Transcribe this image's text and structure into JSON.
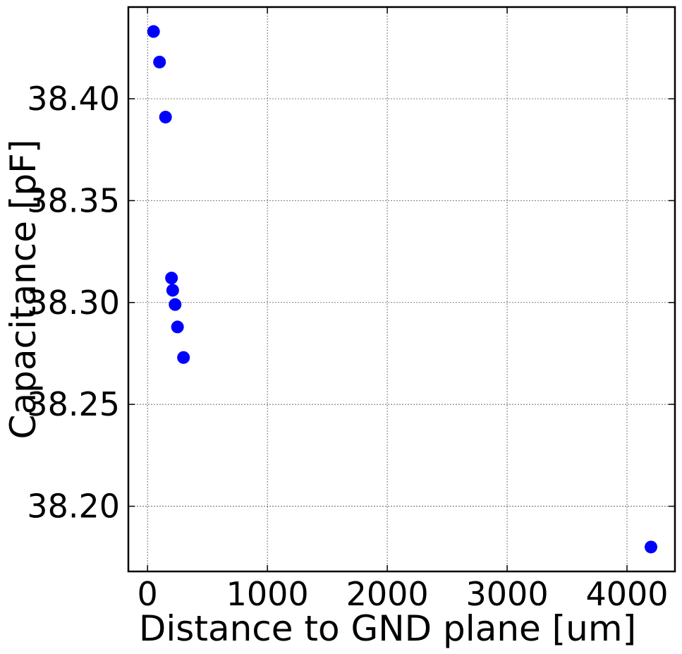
{
  "chart_data": {
    "type": "scatter",
    "xlabel": "Distance to GND plane [um]",
    "ylabel": "Capacitance [pF]",
    "xlim": [
      -160,
      4400
    ],
    "ylim": [
      38.168,
      38.445
    ],
    "xticks": [
      0,
      1000,
      2000,
      3000,
      4000
    ],
    "xtick_labels": [
      "0",
      "1000",
      "2000",
      "3000",
      "4000"
    ],
    "yticks": [
      38.2,
      38.25,
      38.3,
      38.35,
      38.4
    ],
    "ytick_labels": [
      "38.20",
      "38.25",
      "38.30",
      "38.35",
      "38.40"
    ],
    "grid": true,
    "marker_color": "#0000ff",
    "series": [
      {
        "points": [
          {
            "x": 50,
            "y": 38.433
          },
          {
            "x": 100,
            "y": 38.418
          },
          {
            "x": 150,
            "y": 38.391
          },
          {
            "x": 200,
            "y": 38.312
          },
          {
            "x": 210,
            "y": 38.306
          },
          {
            "x": 230,
            "y": 38.299
          },
          {
            "x": 250,
            "y": 38.288
          },
          {
            "x": 300,
            "y": 38.273
          },
          {
            "x": 4200,
            "y": 38.18
          }
        ]
      }
    ]
  }
}
